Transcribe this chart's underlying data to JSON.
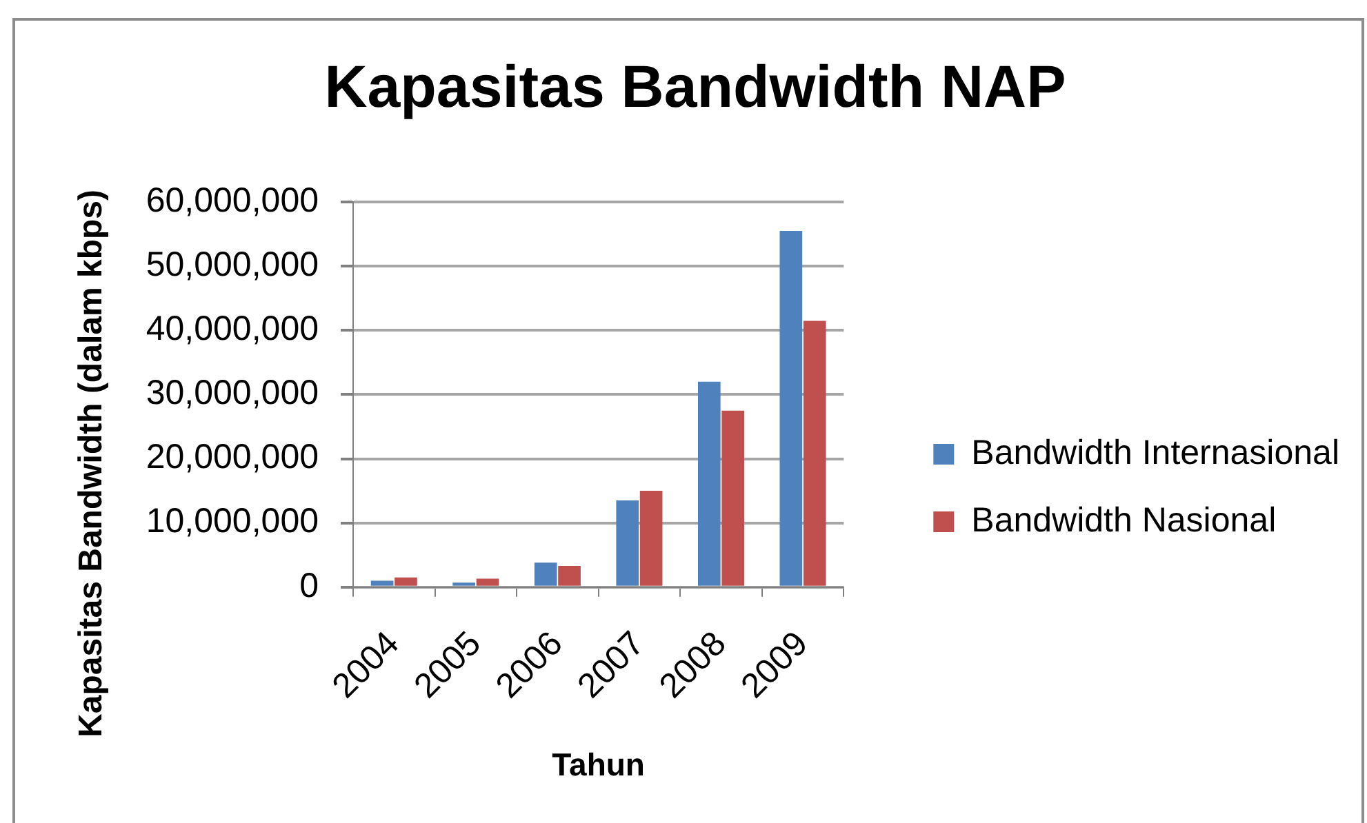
{
  "chart_data": {
    "type": "bar",
    "title": "Kapasitas Bandwidth NAP",
    "xlabel": "Tahun",
    "ylabel": "Kapasitas Bandwidth (dalam kbps)",
    "categories": [
      "2004",
      "2005",
      "2006",
      "2007",
      "2008",
      "2009"
    ],
    "series": [
      {
        "name": "Bandwidth Internasional",
        "color": "#4f81bd",
        "values": [
          1000000,
          700000,
          3800000,
          13500000,
          32000000,
          55500000
        ]
      },
      {
        "name": "Bandwidth Nasional",
        "color": "#c0504d",
        "values": [
          1500000,
          1300000,
          3300000,
          15000000,
          27500000,
          41500000
        ]
      }
    ],
    "ylim": [
      0,
      60000000
    ],
    "yticks": [
      {
        "value": 0,
        "label": "0"
      },
      {
        "value": 10000000,
        "label": "10,000,000"
      },
      {
        "value": 20000000,
        "label": "20,000,000"
      },
      {
        "value": 30000000,
        "label": "30,000,000"
      },
      {
        "value": 40000000,
        "label": "40,000,000"
      },
      {
        "value": 50000000,
        "label": "50,000,000"
      },
      {
        "value": 60000000,
        "label": "60,000,000"
      }
    ],
    "grid": "y",
    "legend": "right"
  }
}
